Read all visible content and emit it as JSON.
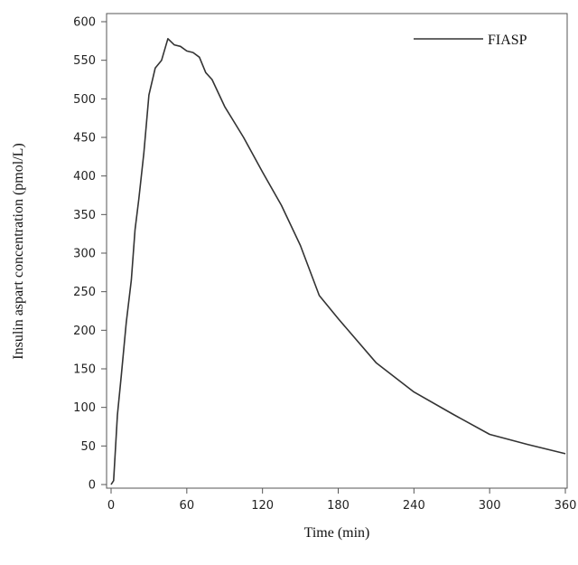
{
  "chart_data": {
    "type": "line",
    "title": "",
    "xlabel": "Time (min)",
    "ylabel": "Insulin aspart concentration (pmol/L)",
    "xlim": [
      0,
      360
    ],
    "ylim": [
      0,
      600
    ],
    "x_ticks": [
      0,
      60,
      120,
      180,
      240,
      300,
      360
    ],
    "y_ticks": [
      0,
      50,
      100,
      150,
      200,
      250,
      300,
      350,
      400,
      450,
      500,
      550,
      600
    ],
    "grid": false,
    "legend_position": "top-right",
    "series": [
      {
        "name": "FIASP",
        "color": "#333333",
        "x": [
          0,
          2,
          5,
          8,
          12,
          16,
          19,
          22,
          26,
          30,
          35,
          40,
          45,
          50,
          55,
          60,
          65,
          70,
          75,
          80,
          90,
          105,
          120,
          135,
          150,
          165,
          180,
          210,
          240,
          270,
          300,
          330,
          360
        ],
        "y": [
          0,
          5,
          90,
          140,
          210,
          265,
          330,
          370,
          430,
          505,
          540,
          550,
          578,
          570,
          568,
          562,
          560,
          554,
          534,
          525,
          490,
          450,
          405,
          362,
          310,
          245,
          215,
          158,
          120,
          92,
          65,
          52,
          40
        ]
      }
    ]
  }
}
